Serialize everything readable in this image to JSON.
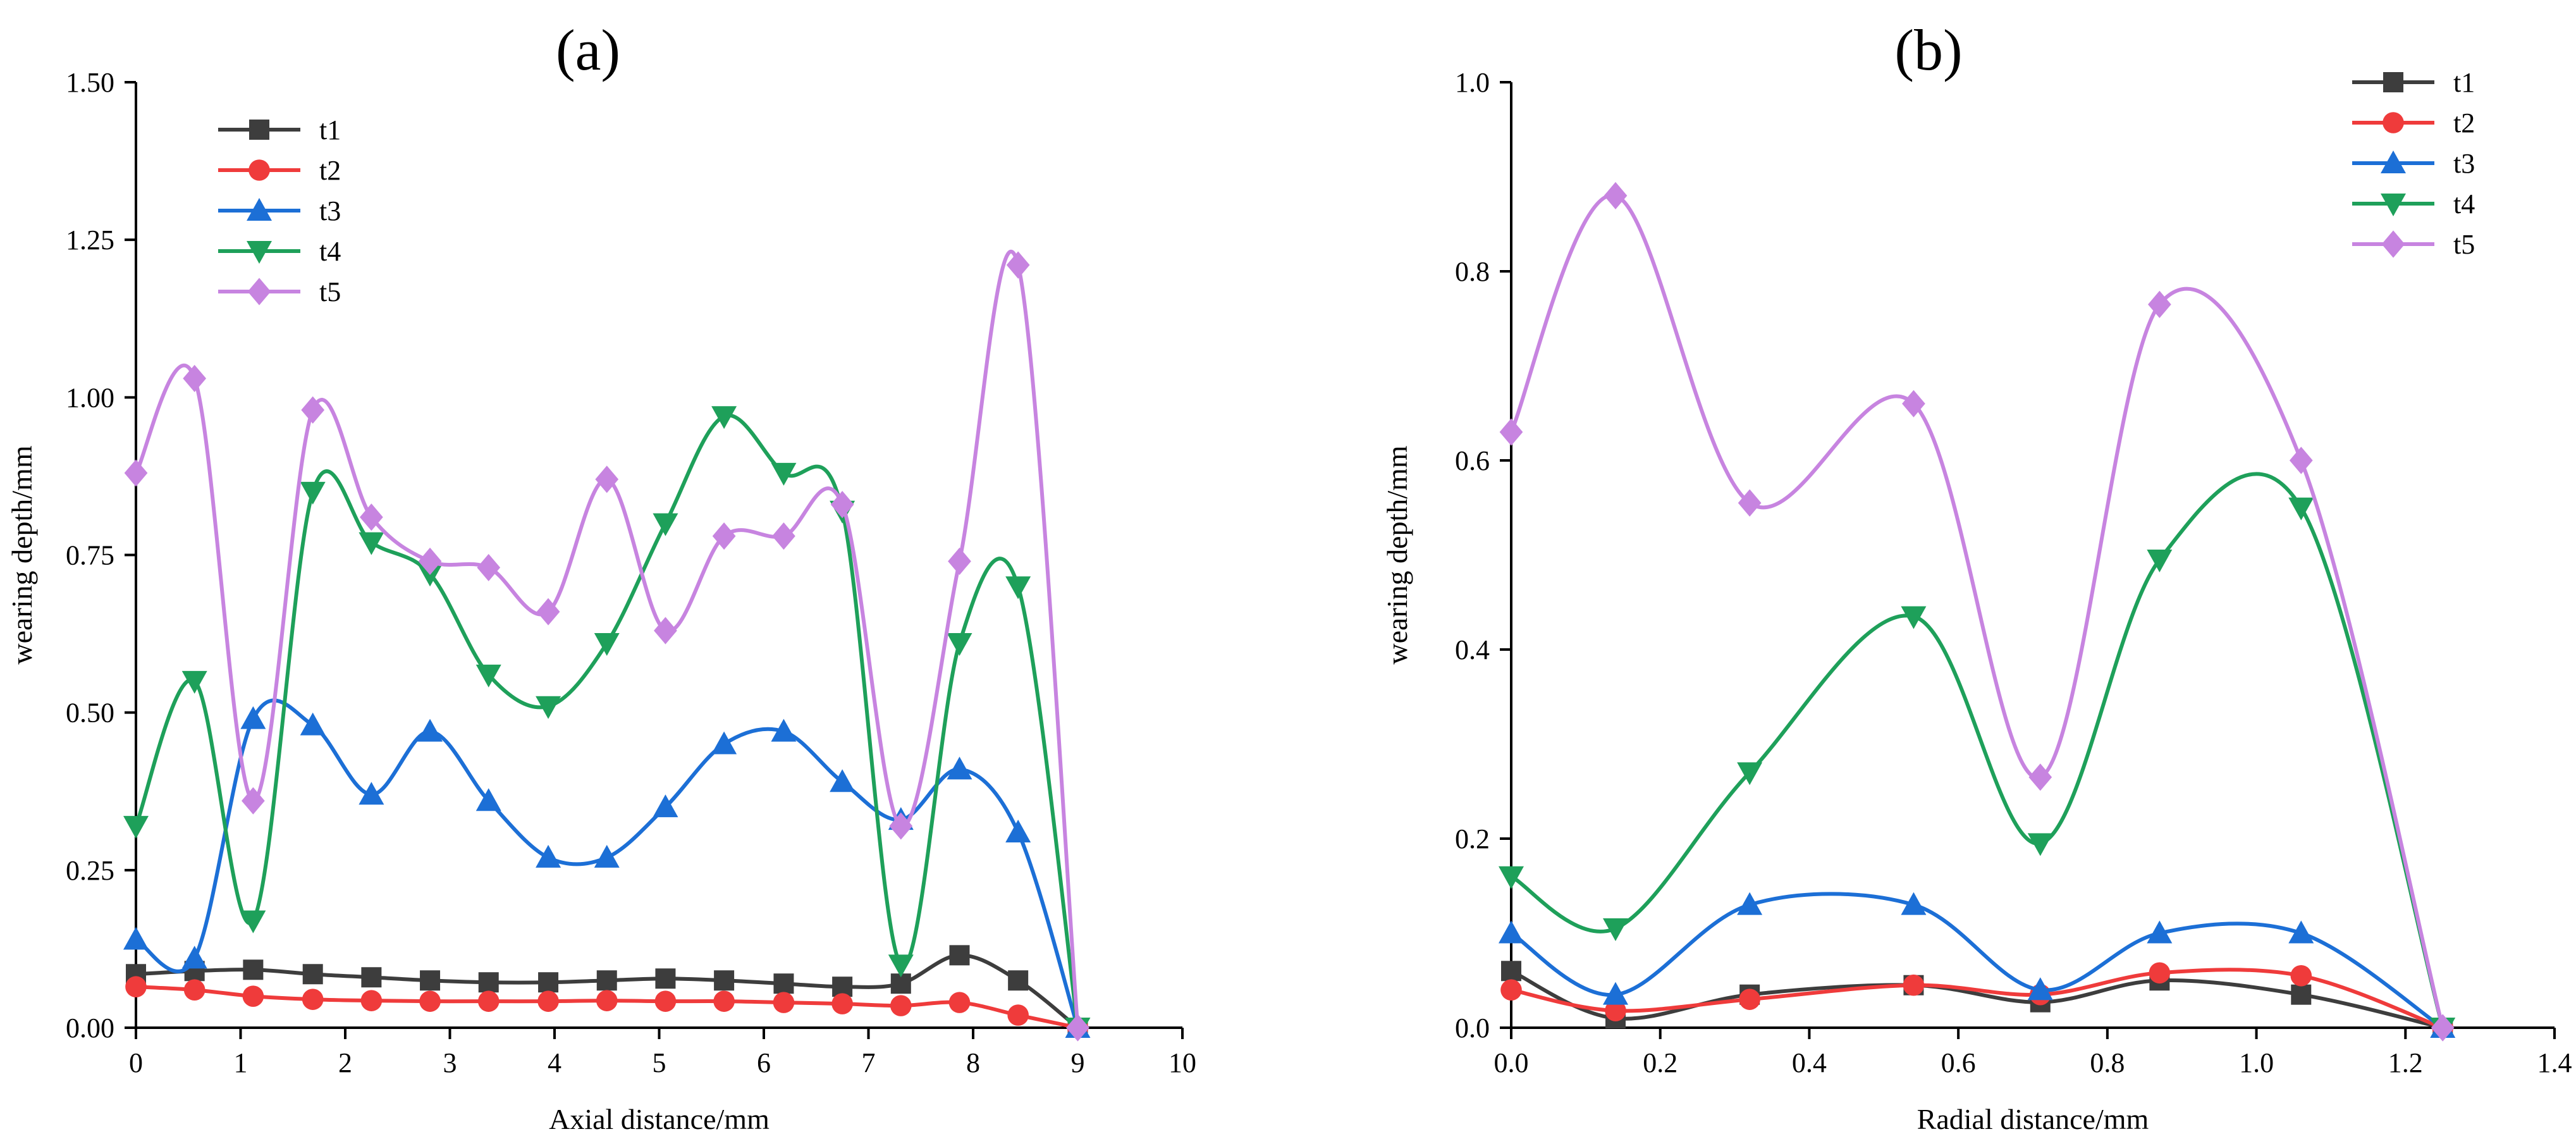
{
  "chart_data": [
    {
      "type": "line",
      "panel_label": "(a)",
      "xlabel": "Axial distance/mm",
      "ylabel": "wearing depth/mm",
      "xlim": [
        0,
        10
      ],
      "ylim": [
        0,
        1.5
      ],
      "xticks": [
        0,
        1,
        2,
        3,
        4,
        5,
        6,
        7,
        8,
        9,
        10
      ],
      "yticks": [
        0.0,
        0.25,
        0.5,
        0.75,
        1.0,
        1.25,
        1.5
      ],
      "xtick_labels": [
        "0",
        "1",
        "2",
        "3",
        "4",
        "5",
        "6",
        "7",
        "8",
        "9",
        "10"
      ],
      "ytick_labels": [
        "0.00",
        "0.25",
        "0.50",
        "0.75",
        "1.00",
        "1.25",
        "1.50"
      ],
      "legend_position": "top-left",
      "x": [
        0,
        0.56,
        1.12,
        1.69,
        2.25,
        2.81,
        3.37,
        3.94,
        4.5,
        5.06,
        5.62,
        6.19,
        6.75,
        7.31,
        7.87,
        8.43,
        9.0
      ],
      "series": [
        {
          "name": "t1",
          "color": "#3d3d3d",
          "marker": "square",
          "values": [
            0.085,
            0.09,
            0.092,
            0.085,
            0.08,
            0.075,
            0.072,
            0.072,
            0.075,
            0.078,
            0.075,
            0.07,
            0.065,
            0.07,
            0.115,
            0.075,
            0.0
          ]
        },
        {
          "name": "t2",
          "color": "#ef3b3b",
          "marker": "circle",
          "values": [
            0.065,
            0.06,
            0.05,
            0.045,
            0.043,
            0.042,
            0.042,
            0.042,
            0.043,
            0.042,
            0.042,
            0.04,
            0.038,
            0.035,
            0.04,
            0.02,
            0.0
          ]
        },
        {
          "name": "t3",
          "color": "#1c6fd6",
          "marker": "triangle-up",
          "values": [
            0.14,
            0.11,
            0.49,
            0.48,
            0.37,
            0.47,
            0.36,
            0.27,
            0.27,
            0.35,
            0.45,
            0.47,
            0.39,
            0.33,
            0.41,
            0.31,
            0.0
          ]
        },
        {
          "name": "t4",
          "color": "#1ea05a",
          "marker": "triangle-down",
          "values": [
            0.32,
            0.55,
            0.17,
            0.85,
            0.77,
            0.72,
            0.56,
            0.51,
            0.61,
            0.8,
            0.97,
            0.88,
            0.82,
            0.1,
            0.61,
            0.7,
            0.0
          ]
        },
        {
          "name": "t5",
          "color": "#c784e0",
          "marker": "diamond",
          "values": [
            0.88,
            1.03,
            0.36,
            0.98,
            0.81,
            0.74,
            0.73,
            0.66,
            0.87,
            0.63,
            0.78,
            0.78,
            0.83,
            0.32,
            0.74,
            1.21,
            0.0
          ]
        }
      ]
    },
    {
      "type": "line",
      "panel_label": "(b)",
      "xlabel": "Radial distance/mm",
      "ylabel": "wearing depth/mm",
      "xlim": [
        0,
        1.4
      ],
      "ylim": [
        0,
        1.0
      ],
      "xticks": [
        0.0,
        0.2,
        0.4,
        0.6,
        0.8,
        1.0,
        1.2,
        1.4
      ],
      "yticks": [
        0.0,
        0.2,
        0.4,
        0.6,
        0.8,
        1.0
      ],
      "xtick_labels": [
        "0.0",
        "0.2",
        "0.4",
        "0.6",
        "0.8",
        "1.0",
        "1.2",
        "1.4"
      ],
      "ytick_labels": [
        "0.0",
        "0.2",
        "0.4",
        "0.6",
        "0.8",
        "1.0"
      ],
      "legend_position": "top-right",
      "x": [
        0.0,
        0.14,
        0.32,
        0.54,
        0.71,
        0.87,
        1.06,
        1.25
      ],
      "series": [
        {
          "name": "t1",
          "color": "#3d3d3d",
          "marker": "square",
          "values": [
            0.06,
            0.01,
            0.035,
            0.045,
            0.027,
            0.05,
            0.035,
            0.0
          ]
        },
        {
          "name": "t2",
          "color": "#ef3b3b",
          "marker": "circle",
          "values": [
            0.04,
            0.018,
            0.03,
            0.045,
            0.035,
            0.058,
            0.055,
            0.0
          ]
        },
        {
          "name": "t3",
          "color": "#1c6fd6",
          "marker": "triangle-up",
          "values": [
            0.1,
            0.035,
            0.13,
            0.13,
            0.04,
            0.1,
            0.1,
            0.0
          ]
        },
        {
          "name": "t4",
          "color": "#1ea05a",
          "marker": "triangle-down",
          "values": [
            0.16,
            0.105,
            0.27,
            0.435,
            0.195,
            0.495,
            0.55,
            0.0
          ]
        },
        {
          "name": "t5",
          "color": "#c784e0",
          "marker": "diamond",
          "values": [
            0.63,
            0.88,
            0.555,
            0.66,
            0.265,
            0.765,
            0.6,
            0.0
          ]
        }
      ]
    }
  ]
}
